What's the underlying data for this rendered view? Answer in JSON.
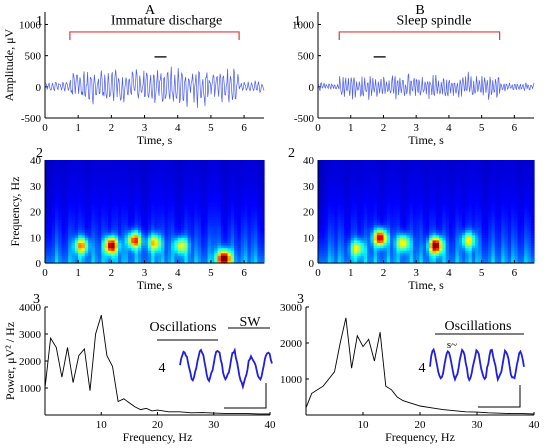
{
  "panels": {
    "left": {
      "letter": "A",
      "row1": "1",
      "row2": "2",
      "row3": "3",
      "row4": "4"
    },
    "right": {
      "letter": "B",
      "row1": "1",
      "row2": "2",
      "row3": "3",
      "row4": "4"
    }
  },
  "colors": {
    "trace": "#4a5cf0",
    "bracket": "#e03a3a",
    "inset": "#1f1fe0",
    "spectrum": "#000000"
  },
  "chart_data": [
    {
      "id": "A1",
      "type": "line",
      "title": "Immature discharge",
      "xlabel": "Time, s",
      "ylabel": "Amplitude, μV",
      "xlim": [
        0,
        6.6
      ],
      "ylim": [
        -500,
        1200
      ],
      "xticks": [
        "0",
        "1",
        "2",
        "3",
        "4",
        "5",
        "6"
      ],
      "yticks": [
        "-500",
        "0",
        "500",
        "1000"
      ],
      "bracket": [
        0.75,
        5.85
      ],
      "series": [
        {
          "samples": 320,
          "seed": 11,
          "base_amp": 70,
          "burst": [
            0.75,
            5.85
          ],
          "burst_amp": 230,
          "freq": 9.5
        }
      ]
    },
    {
      "id": "B1",
      "type": "line",
      "title": "Sleep spindle",
      "xlabel": "Time, s",
      "ylabel": "",
      "xlim": [
        0,
        6.6
      ],
      "ylim": [
        -500,
        1200
      ],
      "xticks": [
        "0",
        "1",
        "2",
        "3",
        "4",
        "5",
        "6"
      ],
      "yticks": [
        "-500",
        "0",
        "500",
        "1000"
      ],
      "bracket": [
        0.65,
        5.55
      ],
      "series": [
        {
          "samples": 320,
          "seed": 23,
          "base_amp": 50,
          "burst": [
            0.65,
            5.55
          ],
          "burst_amp": 160,
          "freq": 12.0
        }
      ]
    },
    {
      "id": "A2",
      "type": "heatmap",
      "xlabel": "Time, s",
      "ylabel": "Frequency, Hz",
      "xlim": [
        0,
        6.6
      ],
      "ylim": [
        0,
        40
      ],
      "xticks": [
        "0",
        "1",
        "2",
        "3",
        "4",
        "5",
        "6"
      ],
      "yticks": [
        "0",
        "10",
        "20",
        "30",
        "40"
      ],
      "hotspots": [
        [
          2.0,
          7,
          0.9
        ],
        [
          2.7,
          9,
          0.75
        ],
        [
          1.1,
          7,
          0.6
        ],
        [
          5.4,
          2,
          0.95
        ],
        [
          3.3,
          8,
          0.55
        ],
        [
          4.1,
          7,
          0.5
        ]
      ]
    },
    {
      "id": "B2",
      "type": "heatmap",
      "xlabel": "Time, s",
      "ylabel": "",
      "xlim": [
        0,
        6.6
      ],
      "ylim": [
        0,
        40
      ],
      "xticks": [
        "0",
        "1",
        "2",
        "3",
        "4",
        "5",
        "6"
      ],
      "yticks": [
        "0",
        "10",
        "20",
        "30",
        "40"
      ],
      "hotspots": [
        [
          1.9,
          10,
          0.9
        ],
        [
          3.6,
          7,
          0.95
        ],
        [
          2.6,
          8,
          0.55
        ],
        [
          4.6,
          9,
          0.5
        ],
        [
          1.2,
          6,
          0.45
        ]
      ]
    },
    {
      "id": "A3",
      "type": "line",
      "xlabel": "Frequency, Hz",
      "ylabel": "Power, μV² / Hz",
      "xlim": [
        0,
        40
      ],
      "ylim": [
        0,
        4000
      ],
      "xticks": [
        "10",
        "20",
        "30",
        "40"
      ],
      "yticks": [
        "1000",
        "2000",
        "3000",
        "4000"
      ],
      "series": [
        {
          "x": [
            0,
            1,
            2,
            3,
            4,
            5,
            6,
            7,
            8,
            9,
            10,
            11,
            12,
            13,
            14,
            15,
            16,
            17,
            18,
            19,
            20,
            22,
            24,
            26,
            28,
            30,
            32,
            34,
            36,
            38,
            40
          ],
          "y": [
            1000,
            2850,
            2500,
            1400,
            2500,
            1200,
            2200,
            2450,
            900,
            3000,
            3700,
            2200,
            1800,
            500,
            600,
            450,
            300,
            200,
            250,
            150,
            180,
            120,
            120,
            80,
            90,
            70,
            60,
            50,
            50,
            40,
            40
          ]
        }
      ],
      "inset": {
        "labels": [
          "Oscillations",
          "SW"
        ],
        "number": "4"
      }
    },
    {
      "id": "B3",
      "type": "line",
      "xlabel": "Frequency, Hz",
      "ylabel": "",
      "xlim": [
        0,
        40
      ],
      "ylim": [
        0,
        3000
      ],
      "xticks": [
        "10",
        "20",
        "30",
        "40"
      ],
      "yticks": [
        "1000",
        "2000",
        "3000"
      ],
      "series": [
        {
          "x": [
            0,
            1,
            2,
            3,
            4,
            5,
            6,
            7,
            8,
            9,
            10,
            11,
            12,
            13,
            14,
            15,
            16,
            17,
            18,
            19,
            20,
            22,
            24,
            26,
            28,
            30,
            32,
            34,
            36,
            38,
            40
          ],
          "y": [
            200,
            600,
            700,
            800,
            1000,
            1200,
            2000,
            2700,
            1300,
            2200,
            1900,
            2100,
            1500,
            2300,
            800,
            700,
            500,
            400,
            350,
            300,
            250,
            200,
            150,
            120,
            90,
            80,
            60,
            50,
            40,
            40,
            30
          ]
        }
      ],
      "inset": {
        "labels": [
          "Oscillations",
          "s~"
        ],
        "number": "4"
      }
    }
  ]
}
